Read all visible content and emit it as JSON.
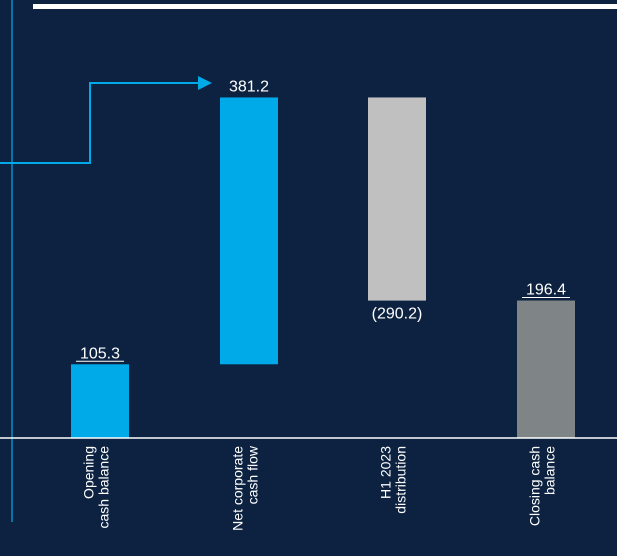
{
  "chart_data": {
    "type": "bar",
    "variant": "waterfall",
    "categories": [
      [
        "Opening",
        "cash balance"
      ],
      [
        "Net corporate",
        "cash flow"
      ],
      [
        "H1 2023",
        "distribution"
      ],
      [
        "Closing cash",
        "balance"
      ]
    ],
    "values": [
      105.3,
      381.2,
      -290.2,
      196.4
    ],
    "measures": [
      "absolute",
      "relative",
      "relative",
      "total"
    ],
    "data_labels": [
      "105.3",
      "381.2",
      "(290.2)",
      "196.4"
    ],
    "ylim": [
      0,
      500
    ],
    "grid": false,
    "legend": "none"
  },
  "colors": {
    "background": "#0c2240",
    "accent": "#00a9e8",
    "distribution": "#c0c0c0",
    "closing": "#7f8487",
    "axis": "#ffffff"
  }
}
